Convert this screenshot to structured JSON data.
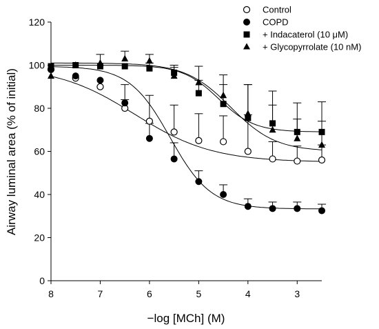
{
  "chart_data": {
    "type": "scatter",
    "xlabel": "−log [MCh] (M)",
    "ylabel": "Airway luminal area (% of initial)",
    "xlim": [
      8,
      2.5
    ],
    "ylim": [
      0,
      120
    ],
    "x_reversed": true,
    "x_ticks": [
      8,
      7,
      6,
      5,
      4,
      3
    ],
    "y_ticks": [
      0,
      20,
      40,
      60,
      80,
      100,
      120
    ],
    "grid": false,
    "legend_position": "top-right",
    "series": [
      {
        "name": "Control",
        "marker": "circle-open",
        "color": "#000000",
        "x": [
          8,
          7.5,
          7,
          6.5,
          6,
          5.5,
          5,
          4.5,
          4,
          3.5,
          3,
          2.5
        ],
        "y": [
          98,
          94,
          90,
          80,
          74,
          69,
          65,
          64.5,
          60,
          56.5,
          55.5,
          56
        ],
        "error_plus": [
          2,
          2,
          2,
          4,
          12,
          12.5,
          12.5,
          12,
          17,
          8,
          7,
          7
        ]
      },
      {
        "name": "COPD",
        "marker": "circle-filled",
        "color": "#000000",
        "x": [
          8,
          7.5,
          7,
          6.5,
          6,
          5.5,
          5,
          4.5,
          4,
          3.5,
          3,
          2.5
        ],
        "y": [
          98,
          95,
          93,
          82.5,
          66,
          56.5,
          46,
          40,
          34.5,
          33.5,
          33.5,
          32.5
        ],
        "error_plus": [
          2,
          2,
          2,
          8.5,
          7,
          7.5,
          5,
          4.5,
          3.5,
          3,
          3,
          3
        ]
      },
      {
        "name": "+ Indacaterol (10 μM)",
        "marker": "square-filled",
        "color": "#000000",
        "x": [
          8,
          7.5,
          7,
          6.5,
          6,
          5.5,
          5,
          4.5,
          4,
          3.5,
          3,
          2.5
        ],
        "y": [
          99.5,
          100,
          99.5,
          99.5,
          98.5,
          96.5,
          87,
          82,
          75.5,
          73,
          69,
          69
        ],
        "error_plus": [
          1.5,
          1.5,
          1.5,
          1.5,
          2.5,
          3.5,
          6,
          9,
          15.5,
          15,
          13.5,
          14
        ]
      },
      {
        "name": "+ Glycopyrrolate (10 nM)",
        "marker": "triangle-filled",
        "color": "#000000",
        "x": [
          8,
          7.5,
          7,
          6.5,
          6,
          5.5,
          5,
          4.5,
          4,
          3.5,
          3,
          2.5
        ],
        "y": [
          95,
          100,
          101,
          103,
          102,
          95,
          92,
          86,
          77.5,
          70,
          66,
          63
        ],
        "error_plus": [
          2,
          2,
          4,
          3.5,
          3,
          4,
          7.5,
          9.5,
          13.5,
          11.5,
          9,
          11
        ]
      }
    ],
    "fit_curves": [
      {
        "series": "Control",
        "top": 99.5,
        "bottom": 55,
        "logEC50": 6.3,
        "hill": 0.55
      },
      {
        "series": "COPD",
        "top": 99.5,
        "bottom": 33.3,
        "logEC50": 5.58,
        "hill": 1.05
      },
      {
        "series": "+ Indacaterol (10 μM)",
        "top": 100,
        "bottom": 69,
        "logEC50": 4.6,
        "hill": 1.2
      },
      {
        "series": "+ Glycopyrrolate (10 nM)",
        "top": 101,
        "bottom": 60,
        "logEC50": 4.35,
        "hill": 0.95
      }
    ]
  }
}
